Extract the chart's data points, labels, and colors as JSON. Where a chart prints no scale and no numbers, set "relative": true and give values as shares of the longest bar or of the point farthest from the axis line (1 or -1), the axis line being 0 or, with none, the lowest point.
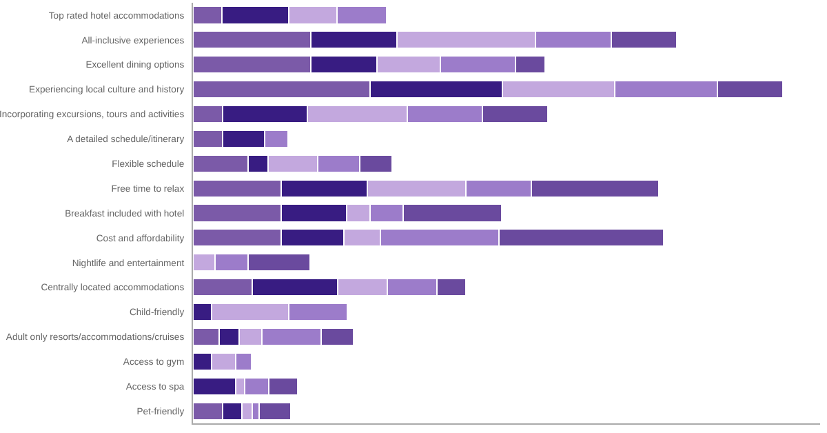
{
  "chart_data": {
    "type": "bar",
    "orientation": "horizontal",
    "stacked": true,
    "relative": true,
    "categories": [
      "Top rated hotel accommodations",
      "All-inclusive experiences",
      "Excellent dining options",
      "Experiencing local culture and history",
      "Incorporating excursions, tours and activities",
      "A detailed schedule/itinerary",
      "Flexible schedule",
      "Free time to relax",
      "Breakfast included with hotel",
      "Cost and affordability",
      "Nightlife and entertainment",
      "Centrally located accommodations",
      "Child-friendly",
      "Adult only resorts/accommodations/cruises",
      "Access to gym",
      "Access to spa",
      "Pet-friendly"
    ],
    "series": [
      {
        "color": "#7b5aa8",
        "values": [
          0.049,
          0.2,
          0.2,
          0.3,
          0.05,
          0.05,
          0.093,
          0.149,
          0.149,
          0.149,
          null,
          0.1,
          null,
          0.044,
          null,
          null,
          0.05
        ]
      },
      {
        "color": "#381c82",
        "values": [
          0.113,
          0.146,
          0.112,
          0.224,
          0.144,
          0.072,
          0.034,
          0.146,
          0.112,
          0.107,
          null,
          0.145,
          0.032,
          0.034,
          0.032,
          0.072,
          0.033
        ]
      },
      {
        "color": "#c3a8de",
        "values": [
          0.082,
          0.235,
          0.107,
          0.191,
          0.169,
          null,
          0.084,
          0.167,
          0.039,
          0.062,
          0.037,
          0.084,
          0.13,
          0.039,
          0.04,
          0.016,
          0.017
        ]
      },
      {
        "color": "#9c7cca",
        "values": [
          0.084,
          0.128,
          0.128,
          0.174,
          0.128,
          0.039,
          0.072,
          0.112,
          0.056,
          0.201,
          0.056,
          0.084,
          0.1,
          0.1,
          0.027,
          0.04,
          0.012
        ]
      },
      {
        "color": "#6a4a9e",
        "values": [
          null,
          0.111,
          0.05,
          0.111,
          0.111,
          null,
          0.055,
          0.216,
          0.167,
          0.279,
          0.106,
          0.049,
          null,
          0.055,
          null,
          0.049,
          0.054
        ]
      }
    ]
  }
}
